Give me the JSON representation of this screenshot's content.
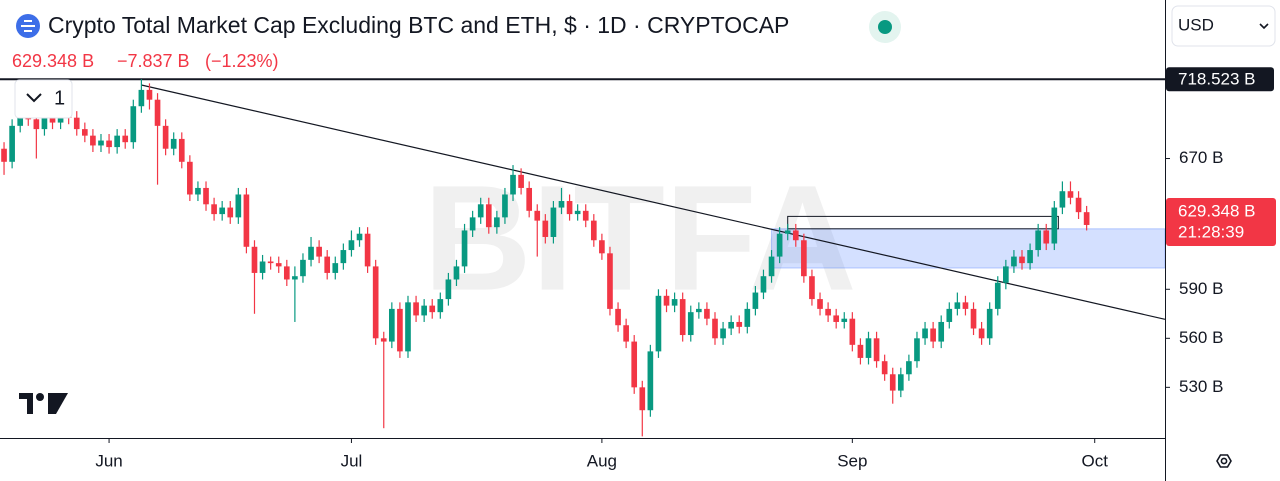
{
  "chart_data": {
    "type": "candlestick",
    "title": "Crypto Total Market Cap Excluding BTC and ETH, $ · 1D · CRYPTOCAP",
    "price_label": "629.348 B",
    "change_label": "−7.837 B",
    "change_pct_label": "(−1.23%)",
    "currency": "USD",
    "indicator_count": "1",
    "watermark": "BITFA",
    "up_color": "#089981",
    "down_color": "#f23645",
    "ylim": [
      499,
      767
    ],
    "yticks": [
      {
        "value": 530,
        "label": "530 B"
      },
      {
        "value": 560,
        "label": "560 B"
      },
      {
        "value": 590,
        "label": "590 B"
      },
      {
        "value": 670,
        "label": "670 B"
      }
    ],
    "xlim": [
      -0.5,
      143.7
    ],
    "xticks": [
      {
        "value": 13,
        "label": "Jun"
      },
      {
        "value": 43,
        "label": "Jul"
      },
      {
        "value": 74,
        "label": "Aug"
      },
      {
        "value": 105,
        "label": "Sep"
      },
      {
        "value": 135,
        "label": "Oct"
      }
    ],
    "high_line": {
      "value": 718.523,
      "label": "718.523 B"
    },
    "last_price": {
      "value": 629.348,
      "label": "629.348 B"
    },
    "countdown": "21:28:39",
    "trendline": [
      {
        "index": 17,
        "value": 715
      },
      {
        "index": 143.7,
        "value": 571.6
      }
    ],
    "zone": {
      "from": 95,
      "to": 143.7,
      "low": 603,
      "high": 627
    },
    "box": {
      "from": 97,
      "to": 130.5,
      "low": 627,
      "high": 634.6
    },
    "open": [
      676,
      668,
      690,
      700,
      694,
      688,
      698,
      692,
      700,
      695,
      688,
      684,
      678,
      681,
      677,
      684,
      680,
      702,
      712,
      706,
      690,
      676,
      682,
      668,
      648,
      652,
      642,
      636,
      640,
      634,
      648,
      616,
      600,
      607,
      606,
      604,
      596,
      598,
      608,
      616,
      610,
      600,
      606,
      614,
      620,
      624,
      604,
      560,
      558,
      578,
      552,
      582,
      574,
      580,
      576,
      584,
      596,
      604,
      626,
      634,
      642,
      628,
      634,
      648,
      660,
      652,
      638,
      632,
      622,
      640,
      644,
      636,
      638,
      632,
      620,
      612,
      578,
      568,
      558,
      530,
      516,
      552,
      586,
      580,
      584,
      562,
      576,
      578,
      572,
      560,
      566,
      570,
      567,
      578,
      588,
      598,
      610,
      624,
      626,
      620,
      598,
      584,
      578,
      574,
      570,
      572,
      556,
      548,
      560,
      546,
      538,
      528,
      538,
      546,
      560,
      566,
      558,
      570,
      578,
      582,
      578,
      566,
      560,
      578,
      594,
      604,
      610,
      606,
      614,
      626,
      618,
      640,
      650,
      646,
      637.185
    ],
    "high": [
      680,
      694,
      704,
      704,
      698,
      702,
      702,
      704,
      704,
      699,
      692,
      688,
      685,
      685,
      688,
      688,
      706,
      718.523,
      716,
      710,
      694,
      686,
      686,
      672,
      656,
      656,
      646,
      644,
      644,
      652,
      652,
      620,
      611,
      610,
      610,
      608,
      604,
      612,
      622,
      620,
      614,
      610,
      618,
      626,
      628,
      628,
      608,
      564,
      582,
      582,
      586,
      586,
      584,
      584,
      588,
      600,
      608,
      630,
      638,
      646,
      646,
      638,
      652,
      666,
      664,
      656,
      642,
      636,
      644,
      652,
      648,
      642,
      642,
      636,
      624,
      616,
      582,
      572,
      562,
      534,
      556,
      590,
      590,
      588,
      588,
      580,
      582,
      582,
      576,
      570,
      574,
      574,
      582,
      592,
      602,
      614,
      628,
      630,
      630,
      624,
      602,
      588,
      582,
      578,
      576,
      576,
      560,
      564,
      564,
      550,
      542,
      542,
      550,
      564,
      570,
      570,
      574,
      582,
      588,
      586,
      582,
      570,
      582,
      598,
      608,
      614,
      614,
      618,
      630,
      630,
      644,
      656,
      656,
      650,
      641
    ],
    "low": [
      660,
      664,
      686,
      690,
      670,
      684,
      688,
      688,
      691,
      684,
      680,
      674,
      674,
      673,
      673,
      676,
      676,
      698,
      700,
      654,
      672,
      672,
      664,
      644,
      644,
      638,
      632,
      632,
      630,
      630,
      612,
      575,
      596,
      602,
      600,
      592,
      570,
      594,
      604,
      606,
      596,
      596,
      602,
      610,
      616,
      600,
      556,
      505,
      554,
      548,
      548,
      570,
      570,
      572,
      572,
      580,
      592,
      600,
      622,
      630,
      624,
      624,
      630,
      644,
      648,
      634,
      610,
      618,
      618,
      636,
      632,
      632,
      628,
      616,
      608,
      574,
      564,
      554,
      526,
      500,
      512,
      548,
      576,
      576,
      558,
      558,
      572,
      568,
      556,
      556,
      562,
      563,
      563,
      574,
      584,
      594,
      606,
      620,
      616,
      594,
      580,
      574,
      570,
      566,
      566,
      552,
      544,
      544,
      542,
      534,
      520,
      524,
      534,
      542,
      556,
      554,
      554,
      566,
      574,
      574,
      562,
      556,
      556,
      574,
      590,
      600,
      602,
      602,
      610,
      614,
      614,
      636,
      642,
      633,
      626
    ],
    "close": [
      668,
      690,
      700,
      694,
      688,
      698,
      692,
      700,
      695,
      688,
      684,
      678,
      681,
      677,
      684,
      680,
      702,
      712,
      706,
      690,
      676,
      682,
      668,
      648,
      652,
      642,
      636,
      640,
      634,
      648,
      616,
      600,
      607,
      606,
      604,
      596,
      598,
      608,
      616,
      610,
      600,
      606,
      614,
      620,
      624,
      604,
      560,
      558,
      578,
      552,
      582,
      574,
      580,
      576,
      584,
      596,
      604,
      626,
      634,
      642,
      628,
      634,
      648,
      660,
      652,
      638,
      632,
      622,
      640,
      644,
      636,
      638,
      632,
      620,
      612,
      578,
      568,
      558,
      530,
      516,
      552,
      586,
      580,
      584,
      562,
      576,
      578,
      572,
      560,
      566,
      570,
      567,
      578,
      588,
      598,
      610,
      624,
      626,
      620,
      598,
      584,
      578,
      574,
      570,
      572,
      556,
      548,
      560,
      546,
      538,
      528,
      538,
      546,
      560,
      566,
      558,
      570,
      578,
      582,
      578,
      566,
      560,
      578,
      594,
      604,
      610,
      606,
      614,
      626,
      618,
      640,
      650,
      646,
      637.185,
      629.348
    ]
  }
}
